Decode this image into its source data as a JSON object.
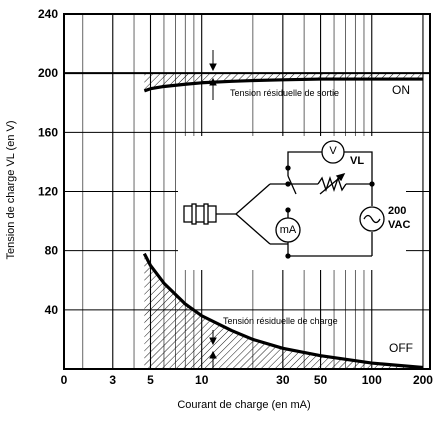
{
  "chart_data": {
    "type": "line",
    "xlabel": "Courant de charge (en mA)",
    "ylabel": "Tension de charge VL (en V)",
    "ylim": [
      0,
      240
    ],
    "y_ticks": [
      0,
      40,
      80,
      120,
      160,
      200,
      240
    ],
    "y_tick_labels": [
      "0",
      "40",
      "80",
      "120",
      "160",
      "200",
      "240"
    ],
    "x_scale": "log",
    "x_ticks": [
      3,
      5,
      10,
      30,
      50,
      100,
      200
    ],
    "x_tick_labels": [
      "3",
      "5",
      "10",
      "30",
      "50",
      "100",
      "200"
    ],
    "origin_label": "0",
    "grid": true,
    "series": [
      {
        "x": [
          4.6,
          5,
          6,
          8,
          10,
          15,
          20,
          30,
          50,
          100,
          200
        ],
        "y": [
          188,
          189.5,
          191,
          192.5,
          193.5,
          194.5,
          195,
          195.5,
          196,
          196,
          196
        ]
      },
      {
        "x": [
          4.6,
          5,
          6,
          8,
          10,
          15,
          20,
          30,
          50,
          100,
          200
        ],
        "y": [
          78,
          70,
          58,
          44,
          36,
          26,
          20,
          14,
          9,
          4,
          1
        ]
      }
    ],
    "reference_line_y": 200,
    "annotations": {
      "on_label": "ON",
      "off_label": "OFF",
      "output_residual": "Tension résiduelle de sortie",
      "load_residual": "Tensión résiduelle de charge"
    }
  },
  "circuit": {
    "voltmeter": "V",
    "vl_label": "VL",
    "ammeter": "mA",
    "source_line1": "200",
    "source_line2": "VAC"
  }
}
